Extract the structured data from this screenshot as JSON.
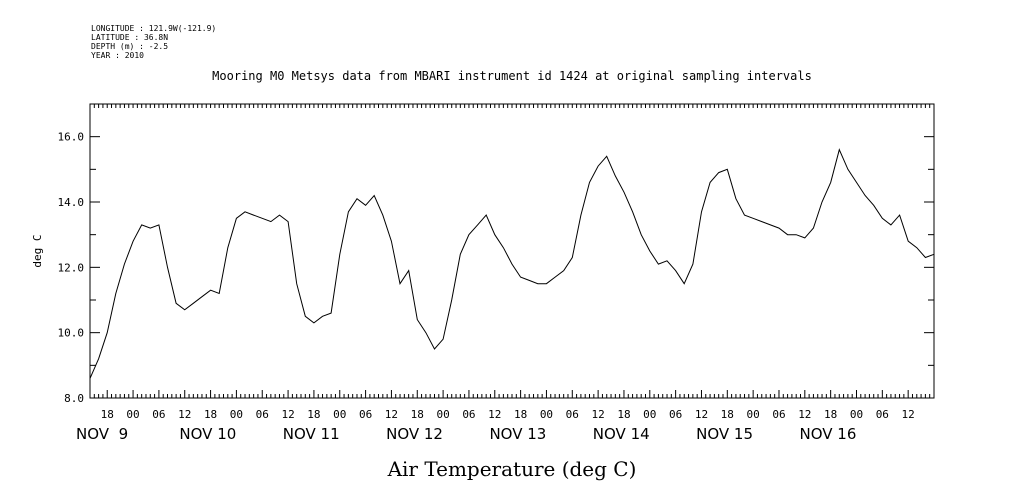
{
  "header": {
    "meta_lines": [
      "LONGITUDE : 121.9W(-121.9)",
      "LATITUDE : 36.8N",
      "DEPTH (m) : -2.5",
      "YEAR : 2010"
    ],
    "title": "Mooring M0 Metsys data from MBARI instrument id 1424 at original sampling intervals"
  },
  "chart_data": {
    "type": "line",
    "title": "Mooring M0 Metsys data from MBARI instrument id 1424 at original sampling intervals",
    "xlabel": "Air Temperature (deg C)",
    "ylabel": "deg C",
    "x_units": "date-time 2010 (Nov 8 14:00 to Nov 16 18:00)",
    "xlim": [
      "2010-11-08T14:00",
      "2010-11-16T18:00"
    ],
    "ylim": [
      8.0,
      17.0
    ],
    "y_ticks": [
      8.0,
      10.0,
      12.0,
      14.0,
      16.0
    ],
    "y_tick_labels": [
      "8.0",
      "10.0",
      "12.0",
      "14.0",
      "16.0"
    ],
    "x_hour_tick_labels": [
      "18",
      "00",
      "06",
      "12",
      "18",
      "00",
      "06",
      "12",
      "18",
      "00",
      "06",
      "12",
      "18",
      "00",
      "06",
      "12",
      "18",
      "00",
      "06",
      "12",
      "18",
      "00",
      "06",
      "12",
      "18",
      "00",
      "06",
      "12",
      "18",
      "00",
      "06",
      "12"
    ],
    "x_day_labels": [
      "NOV  9",
      "NOV 10",
      "NOV 11",
      "NOV 12",
      "NOV 13",
      "NOV 14",
      "NOV 15",
      "NOV 16"
    ],
    "grid": false,
    "series": [
      {
        "color": "#000000",
        "x": [
          "2010-11-08T14:00",
          "2010-11-08T16:00",
          "2010-11-08T18:00",
          "2010-11-08T20:00",
          "2010-11-08T22:00",
          "2010-11-09T00:00",
          "2010-11-09T02:00",
          "2010-11-09T04:00",
          "2010-11-09T06:00",
          "2010-11-09T08:00",
          "2010-11-09T10:00",
          "2010-11-09T12:00",
          "2010-11-09T14:00",
          "2010-11-09T16:00",
          "2010-11-09T18:00",
          "2010-11-09T20:00",
          "2010-11-09T22:00",
          "2010-11-10T00:00",
          "2010-11-10T02:00",
          "2010-11-10T04:00",
          "2010-11-10T06:00",
          "2010-11-10T08:00",
          "2010-11-10T10:00",
          "2010-11-10T12:00",
          "2010-11-10T14:00",
          "2010-11-10T16:00",
          "2010-11-10T18:00",
          "2010-11-10T20:00",
          "2010-11-10T22:00",
          "2010-11-11T00:00",
          "2010-11-11T02:00",
          "2010-11-11T04:00",
          "2010-11-11T06:00",
          "2010-11-11T08:00",
          "2010-11-11T10:00",
          "2010-11-11T12:00",
          "2010-11-11T14:00",
          "2010-11-11T16:00",
          "2010-11-11T18:00",
          "2010-11-11T20:00",
          "2010-11-11T22:00",
          "2010-11-12T00:00",
          "2010-11-12T02:00",
          "2010-11-12T04:00",
          "2010-11-12T06:00",
          "2010-11-12T08:00",
          "2010-11-12T10:00",
          "2010-11-12T12:00",
          "2010-11-12T14:00",
          "2010-11-12T16:00",
          "2010-11-12T18:00",
          "2010-11-12T20:00",
          "2010-11-12T22:00",
          "2010-11-13T00:00",
          "2010-11-13T02:00",
          "2010-11-13T04:00",
          "2010-11-13T06:00",
          "2010-11-13T08:00",
          "2010-11-13T10:00",
          "2010-11-13T12:00",
          "2010-11-13T14:00",
          "2010-11-13T16:00",
          "2010-11-13T18:00",
          "2010-11-13T20:00",
          "2010-11-13T22:00",
          "2010-11-14T00:00",
          "2010-11-14T02:00",
          "2010-11-14T04:00",
          "2010-11-14T06:00",
          "2010-11-14T08:00",
          "2010-11-14T10:00",
          "2010-11-14T12:00",
          "2010-11-14T14:00",
          "2010-11-14T16:00",
          "2010-11-14T18:00",
          "2010-11-14T20:00",
          "2010-11-14T22:00",
          "2010-11-15T00:00",
          "2010-11-15T02:00",
          "2010-11-15T04:00",
          "2010-11-15T06:00",
          "2010-11-15T08:00",
          "2010-11-15T10:00",
          "2010-11-15T12:00",
          "2010-11-15T14:00",
          "2010-11-15T16:00",
          "2010-11-15T18:00",
          "2010-11-15T20:00",
          "2010-11-15T22:00",
          "2010-11-16T00:00",
          "2010-11-16T02:00",
          "2010-11-16T04:00",
          "2010-11-16T06:00",
          "2010-11-16T08:00",
          "2010-11-16T10:00",
          "2010-11-16T12:00",
          "2010-11-16T14:00",
          "2010-11-16T16:00",
          "2010-11-16T18:00"
        ],
        "values": [
          8.6,
          9.2,
          10.0,
          11.2,
          12.1,
          12.8,
          13.3,
          13.2,
          13.3,
          12.0,
          10.9,
          10.7,
          10.9,
          11.1,
          11.3,
          11.2,
          12.6,
          13.5,
          13.7,
          13.6,
          13.5,
          13.4,
          13.6,
          13.4,
          11.5,
          10.5,
          10.3,
          10.5,
          10.6,
          12.4,
          13.7,
          14.1,
          13.9,
          14.2,
          13.6,
          12.8,
          11.5,
          11.9,
          10.4,
          10.0,
          9.5,
          9.8,
          11.0,
          12.4,
          13.0,
          13.3,
          13.6,
          13.0,
          12.6,
          12.1,
          11.7,
          11.6,
          11.5,
          11.5,
          11.7,
          11.9,
          12.3,
          13.6,
          14.6,
          15.1,
          15.4,
          14.8,
          14.3,
          13.7,
          13.0,
          12.5,
          12.1,
          12.2,
          11.9,
          11.5,
          12.1,
          13.7,
          14.6,
          14.9,
          15.0,
          14.1,
          13.6,
          13.5,
          13.4,
          13.3,
          13.2,
          13.0,
          13.0,
          12.9,
          13.2,
          14.0,
          14.6,
          15.6,
          15.0,
          14.6,
          14.2,
          13.9,
          13.5,
          13.3,
          13.6,
          12.8,
          12.6,
          12.3,
          12.4
        ]
      }
    ]
  }
}
